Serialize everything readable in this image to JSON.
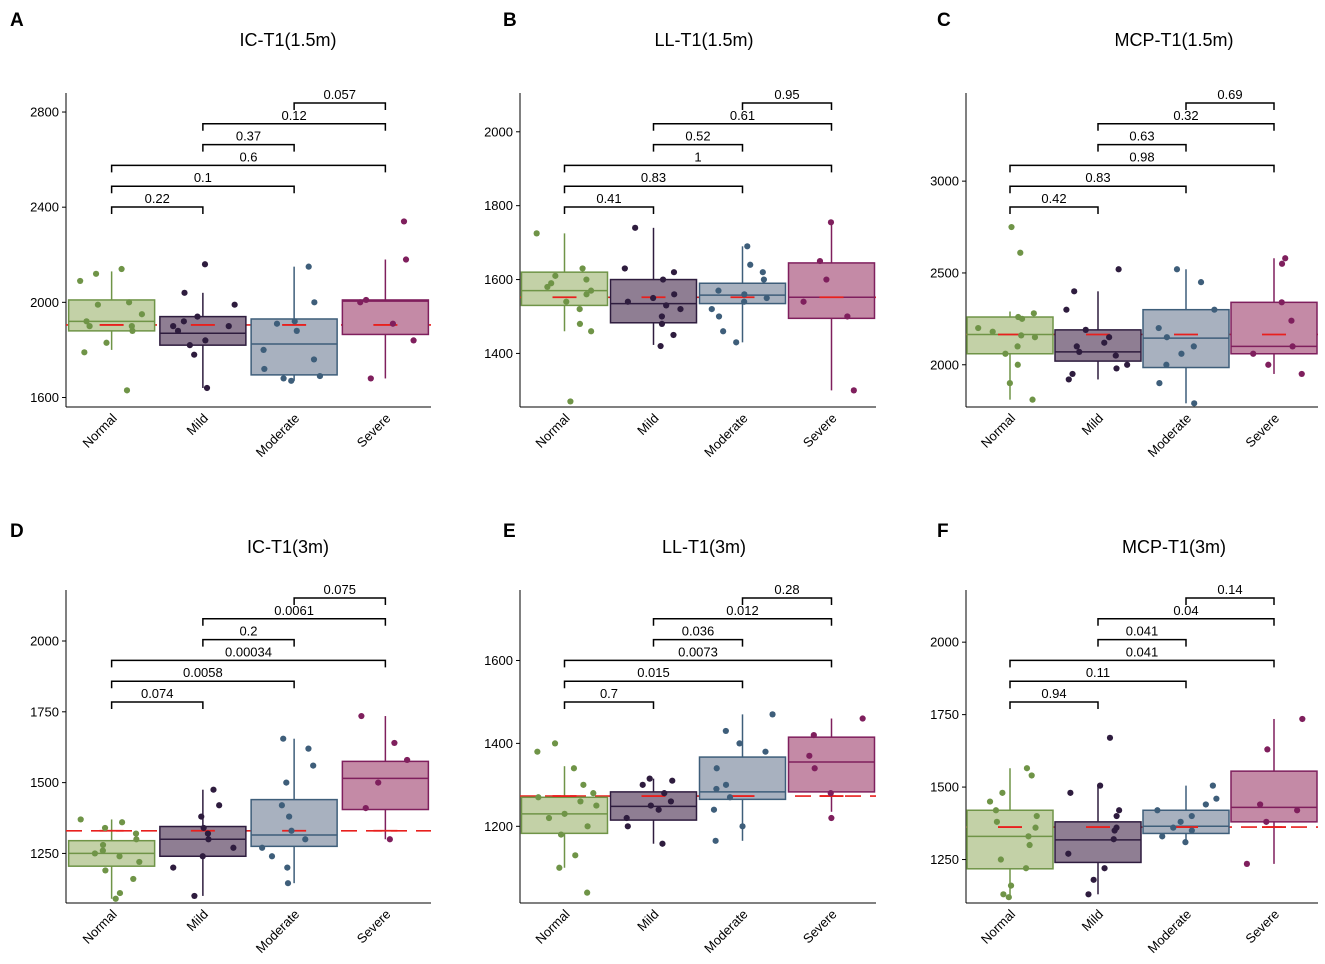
{
  "colors": {
    "Normal": {
      "fill": "#c3d1a7",
      "stroke": "#6f9447",
      "point": "#6f9447"
    },
    "Mild": {
      "fill": "#8f7e93",
      "stroke": "#2e1c3e",
      "point": "#2e1c3e"
    },
    "Moderate": {
      "fill": "#a8b1bf",
      "stroke": "#3e5e7a",
      "point": "#3e5e7a"
    },
    "Severe": {
      "fill": "#c48aa6",
      "stroke": "#7f1f5d",
      "point": "#7f1f5d"
    },
    "reference_line": "#e8201e"
  },
  "chart_data": [
    {
      "type": "box",
      "letter": "A",
      "title": "IC-T1(1.5m)",
      "categories": [
        "Normal",
        "Mild",
        "Moderate",
        "Severe"
      ],
      "yticks": [
        1600,
        2000,
        2400,
        2800
      ],
      "ylim": [
        1560,
        2880
      ],
      "reference_line": 1905,
      "boxes": [
        {
          "q1": 1880,
          "median": 1920,
          "q3": 2010,
          "whisker_low": 1800,
          "whisker_high": 2130
        },
        {
          "q1": 1820,
          "median": 1870,
          "q3": 1940,
          "whisker_low": 1640,
          "whisker_high": 2040
        },
        {
          "q1": 1695,
          "median": 1825,
          "q3": 1930,
          "whisker_low": 1670,
          "whisker_high": 2150
        },
        {
          "q1": 1865,
          "median": 2005,
          "q3": 2010,
          "whisker_low": 1680,
          "whisker_high": 2180
        }
      ],
      "points": [
        [
          1630,
          1790,
          1830,
          1880,
          1900,
          1900,
          1920,
          1950,
          1990,
          2000,
          2090,
          2120,
          2140
        ],
        [
          1640,
          1780,
          1820,
          1840,
          1880,
          1900,
          1900,
          1920,
          1940,
          1990,
          2040,
          2160
        ],
        [
          1670,
          1680,
          1690,
          1720,
          1760,
          1800,
          1880,
          1910,
          1920,
          2000,
          2150
        ],
        [
          1680,
          1840,
          1910,
          2000,
          2010,
          2180,
          2340
        ]
      ],
      "comparisons": [
        {
          "from": "Normal",
          "to": "Mild",
          "p": "0.22"
        },
        {
          "from": "Normal",
          "to": "Moderate",
          "p": "0.1"
        },
        {
          "from": "Normal",
          "to": "Severe",
          "p": "0.6"
        },
        {
          "from": "Mild",
          "to": "Moderate",
          "p": "0.37"
        },
        {
          "from": "Mild",
          "to": "Severe",
          "p": "0.12"
        },
        {
          "from": "Moderate",
          "to": "Severe",
          "p": "0.057"
        }
      ]
    },
    {
      "type": "box",
      "letter": "B",
      "title": "LL-T1(1.5m)",
      "categories": [
        "Normal",
        "Mild",
        "Moderate",
        "Severe"
      ],
      "yticks": [
        1400,
        1600,
        1800,
        2000
      ],
      "ylim": [
        1255,
        2105
      ],
      "reference_line": 1552,
      "boxes": [
        {
          "q1": 1530,
          "median": 1570,
          "q3": 1620,
          "whisker_low": 1460,
          "whisker_high": 1725
        },
        {
          "q1": 1483,
          "median": 1535,
          "q3": 1600,
          "whisker_low": 1423,
          "whisker_high": 1740
        },
        {
          "q1": 1535,
          "median": 1558,
          "q3": 1590,
          "whisker_low": 1430,
          "whisker_high": 1690
        },
        {
          "q1": 1495,
          "median": 1552,
          "q3": 1645,
          "whisker_low": 1300,
          "whisker_high": 1755
        }
      ],
      "points": [
        [
          1270,
          1460,
          1480,
          1520,
          1540,
          1560,
          1570,
          1580,
          1590,
          1600,
          1610,
          1630,
          1725
        ],
        [
          1420,
          1450,
          1480,
          1500,
          1520,
          1530,
          1540,
          1550,
          1560,
          1600,
          1620,
          1630,
          1740
        ],
        [
          1430,
          1460,
          1500,
          1520,
          1540,
          1550,
          1560,
          1570,
          1600,
          1620,
          1640,
          1690
        ],
        [
          1300,
          1500,
          1540,
          1600,
          1650,
          1755
        ]
      ],
      "comparisons": [
        {
          "from": "Normal",
          "to": "Mild",
          "p": "0.41"
        },
        {
          "from": "Normal",
          "to": "Moderate",
          "p": "0.83"
        },
        {
          "from": "Normal",
          "to": "Severe",
          "p": "1"
        },
        {
          "from": "Mild",
          "to": "Moderate",
          "p": "0.52"
        },
        {
          "from": "Mild",
          "to": "Severe",
          "p": "0.61"
        },
        {
          "from": "Moderate",
          "to": "Severe",
          "p": "0.95"
        }
      ]
    },
    {
      "type": "box",
      "letter": "C",
      "title": "MCP-T1(1.5m)",
      "categories": [
        "Normal",
        "Mild",
        "Moderate",
        "Severe"
      ],
      "yticks": [
        2000,
        2500,
        3000
      ],
      "ylim": [
        1770,
        3480
      ],
      "reference_line": 2165,
      "boxes": [
        {
          "q1": 2060,
          "median": 2165,
          "q3": 2260,
          "whisker_low": 1810,
          "whisker_high": 2290
        },
        {
          "q1": 2020,
          "median": 2070,
          "q3": 2190,
          "whisker_low": 1920,
          "whisker_high": 2400
        },
        {
          "q1": 1985,
          "median": 2145,
          "q3": 2300,
          "whisker_low": 1790,
          "whisker_high": 2520
        },
        {
          "q1": 2060,
          "median": 2100,
          "q3": 2340,
          "whisker_low": 1950,
          "whisker_high": 2580
        }
      ],
      "points": [
        [
          1810,
          1900,
          2000,
          2060,
          2100,
          2150,
          2160,
          2180,
          2200,
          2250,
          2260,
          2280,
          2610,
          2750
        ],
        [
          1920,
          1950,
          1980,
          2000,
          2050,
          2070,
          2100,
          2120,
          2150,
          2190,
          2300,
          2400,
          2520
        ],
        [
          1790,
          1900,
          2000,
          2060,
          2100,
          2150,
          2200,
          2300,
          2450,
          2520
        ],
        [
          1950,
          2000,
          2060,
          2100,
          2240,
          2340,
          2550,
          2580
        ]
      ],
      "comparisons": [
        {
          "from": "Normal",
          "to": "Mild",
          "p": "0.42"
        },
        {
          "from": "Normal",
          "to": "Moderate",
          "p": "0.83"
        },
        {
          "from": "Normal",
          "to": "Severe",
          "p": "0.98"
        },
        {
          "from": "Mild",
          "to": "Moderate",
          "p": "0.63"
        },
        {
          "from": "Mild",
          "to": "Severe",
          "p": "0.32"
        },
        {
          "from": "Moderate",
          "to": "Severe",
          "p": "0.69"
        }
      ]
    },
    {
      "type": "box",
      "letter": "D",
      "title": "IC-T1(3m)",
      "categories": [
        "Normal",
        "Mild",
        "Moderate",
        "Severe"
      ],
      "yticks": [
        1250,
        1500,
        1750,
        2000
      ],
      "ylim": [
        1075,
        2180
      ],
      "reference_line": 1330,
      "boxes": [
        {
          "q1": 1205,
          "median": 1250,
          "q3": 1295,
          "whisker_low": 1090,
          "whisker_high": 1370
        },
        {
          "q1": 1240,
          "median": 1300,
          "q3": 1345,
          "whisker_low": 1100,
          "whisker_high": 1475
        },
        {
          "q1": 1275,
          "median": 1315,
          "q3": 1440,
          "whisker_low": 1145,
          "whisker_high": 1655
        },
        {
          "q1": 1405,
          "median": 1515,
          "q3": 1575,
          "whisker_low": 1300,
          "whisker_high": 1735
        }
      ],
      "points": [
        [
          1090,
          1110,
          1160,
          1190,
          1220,
          1240,
          1250,
          1260,
          1280,
          1300,
          1320,
          1340,
          1360,
          1370
        ],
        [
          1100,
          1200,
          1240,
          1270,
          1300,
          1320,
          1340,
          1380,
          1420,
          1475
        ],
        [
          1145,
          1200,
          1240,
          1270,
          1300,
          1330,
          1380,
          1420,
          1500,
          1560,
          1620,
          1655
        ],
        [
          1300,
          1410,
          1500,
          1580,
          1640,
          1735
        ]
      ],
      "comparisons": [
        {
          "from": "Normal",
          "to": "Mild",
          "p": "0.074"
        },
        {
          "from": "Normal",
          "to": "Moderate",
          "p": "0.0058"
        },
        {
          "from": "Normal",
          "to": "Severe",
          "p": "0.00034"
        },
        {
          "from": "Mild",
          "to": "Moderate",
          "p": "0.2"
        },
        {
          "from": "Mild",
          "to": "Severe",
          "p": "0.0061"
        },
        {
          "from": "Moderate",
          "to": "Severe",
          "p": "0.075"
        }
      ]
    },
    {
      "type": "box",
      "letter": "E",
      "title": "LL-T1(3m)",
      "categories": [
        "Normal",
        "Mild",
        "Moderate",
        "Severe"
      ],
      "yticks": [
        1200,
        1400,
        1600
      ],
      "ylim": [
        1015,
        1770
      ],
      "reference_line": 1273,
      "boxes": [
        {
          "q1": 1183,
          "median": 1230,
          "q3": 1270,
          "whisker_low": 1100,
          "whisker_high": 1345
        },
        {
          "q1": 1215,
          "median": 1248,
          "q3": 1283,
          "whisker_low": 1158,
          "whisker_high": 1315
        },
        {
          "q1": 1265,
          "median": 1283,
          "q3": 1367,
          "whisker_low": 1165,
          "whisker_high": 1470
        },
        {
          "q1": 1283,
          "median": 1355,
          "q3": 1415,
          "whisker_low": 1235,
          "whisker_high": 1460
        }
      ],
      "points": [
        [
          1040,
          1100,
          1130,
          1180,
          1200,
          1220,
          1230,
          1250,
          1260,
          1270,
          1280,
          1300,
          1340,
          1380,
          1400
        ],
        [
          1158,
          1200,
          1220,
          1240,
          1250,
          1260,
          1280,
          1300,
          1310,
          1315
        ],
        [
          1165,
          1200,
          1240,
          1270,
          1290,
          1300,
          1340,
          1380,
          1400,
          1430,
          1470
        ],
        [
          1220,
          1280,
          1340,
          1370,
          1420,
          1460
        ]
      ],
      "comparisons": [
        {
          "from": "Normal",
          "to": "Mild",
          "p": "0.7"
        },
        {
          "from": "Normal",
          "to": "Moderate",
          "p": "0.015"
        },
        {
          "from": "Normal",
          "to": "Severe",
          "p": "0.0073"
        },
        {
          "from": "Mild",
          "to": "Moderate",
          "p": "0.036"
        },
        {
          "from": "Mild",
          "to": "Severe",
          "p": "0.012"
        },
        {
          "from": "Moderate",
          "to": "Severe",
          "p": "0.28"
        }
      ]
    },
    {
      "type": "box",
      "letter": "F",
      "title": "MCP-T1(3m)",
      "categories": [
        "Normal",
        "Mild",
        "Moderate",
        "Severe"
      ],
      "yticks": [
        1250,
        1500,
        1750,
        2000
      ],
      "ylim": [
        1100,
        2180
      ],
      "reference_line": 1362,
      "boxes": [
        {
          "q1": 1218,
          "median": 1330,
          "q3": 1420,
          "whisker_low": 1125,
          "whisker_high": 1565
        },
        {
          "q1": 1240,
          "median": 1318,
          "q3": 1380,
          "whisker_low": 1130,
          "whisker_high": 1505
        },
        {
          "q1": 1340,
          "median": 1365,
          "q3": 1420,
          "whisker_low": 1310,
          "whisker_high": 1505
        },
        {
          "q1": 1380,
          "median": 1430,
          "q3": 1555,
          "whisker_low": 1235,
          "whisker_high": 1735
        }
      ],
      "points": [
        [
          1120,
          1130,
          1160,
          1220,
          1250,
          1300,
          1330,
          1360,
          1380,
          1400,
          1420,
          1450,
          1480,
          1540,
          1565
        ],
        [
          1130,
          1180,
          1220,
          1270,
          1320,
          1350,
          1360,
          1400,
          1420,
          1480,
          1505,
          1670
        ],
        [
          1310,
          1330,
          1350,
          1360,
          1380,
          1400,
          1420,
          1440,
          1460,
          1505
        ],
        [
          1235,
          1380,
          1420,
          1440,
          1630,
          1735
        ]
      ],
      "comparisons": [
        {
          "from": "Normal",
          "to": "Mild",
          "p": "0.94"
        },
        {
          "from": "Normal",
          "to": "Moderate",
          "p": "0.11"
        },
        {
          "from": "Normal",
          "to": "Severe",
          "p": "0.041"
        },
        {
          "from": "Mild",
          "to": "Moderate",
          "p": "0.041"
        },
        {
          "from": "Mild",
          "to": "Severe",
          "p": "0.04"
        },
        {
          "from": "Moderate",
          "to": "Severe",
          "p": "0.14"
        }
      ]
    }
  ]
}
